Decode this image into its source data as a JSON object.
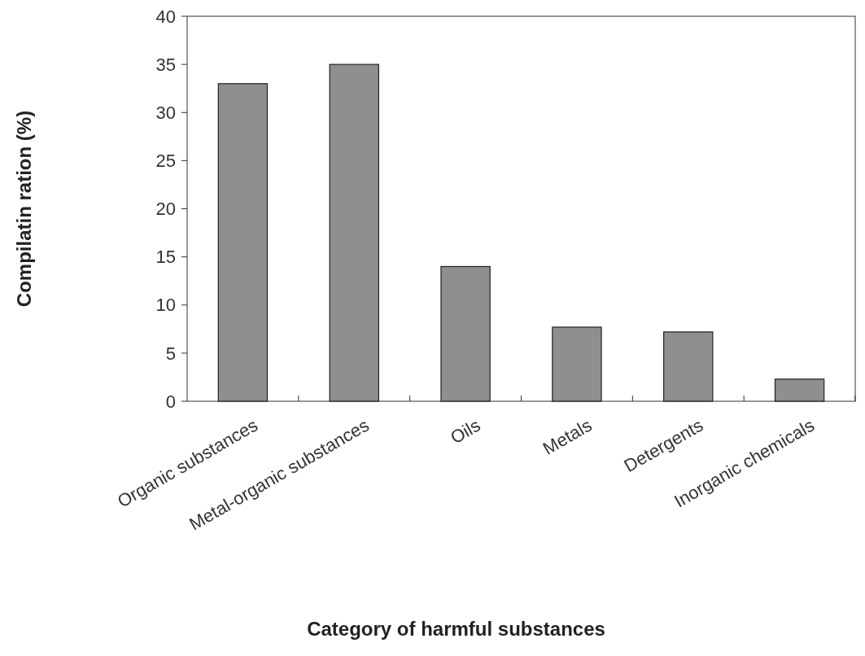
{
  "chart_data": {
    "type": "bar",
    "xlabel": "Category of harmful substances",
    "ylabel": "Compilatin ration (%)",
    "categories": [
      "Organic substances",
      "Metal-organic substances",
      "Oils",
      "Metals",
      "Detergents",
      "Inorganic chemicals"
    ],
    "values": [
      33,
      35,
      14,
      7.7,
      7.2,
      2.3
    ],
    "color": "#8f8f8f",
    "ylim": [
      0,
      40
    ],
    "yticks": [
      0,
      5,
      10,
      15,
      20,
      25,
      30,
      35,
      40
    ],
    "grid": false
  }
}
